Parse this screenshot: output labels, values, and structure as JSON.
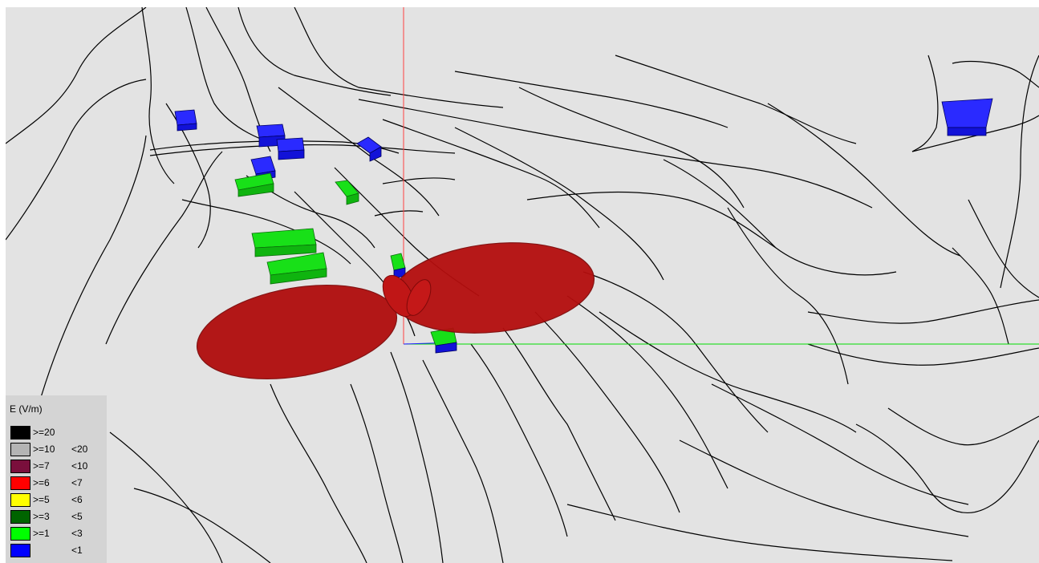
{
  "legend": {
    "title": "E (V/m)",
    "entries": [
      {
        "ge": ">=20",
        "lt": "",
        "color": "#000000"
      },
      {
        "ge": ">=10",
        "lt": "<20",
        "color": "#b4b4b4"
      },
      {
        "ge": ">=7",
        "lt": "<10",
        "color": "#7a0f3c"
      },
      {
        "ge": ">=6",
        "lt": "<7",
        "color": "#ff0000"
      },
      {
        "ge": ">=5",
        "lt": "<6",
        "color": "#ffff00"
      },
      {
        "ge": ">=3",
        "lt": "<5",
        "color": "#006400"
      },
      {
        "ge": ">=1",
        "lt": "<3",
        "color": "#00ff00"
      },
      {
        "ge": "",
        "lt": "<1",
        "color": "#0000ff"
      }
    ]
  },
  "colors": {
    "background": "#e3e3e3",
    "radiation_lobe": "#b00d0d",
    "axis_vertical": "#ff4040",
    "axis_horizontal": "#00dd00",
    "terrain_lines": "#000000"
  },
  "icons": [
    "antenna-radiation-lobe",
    "building-block",
    "terrain-contour",
    "axis-line"
  ]
}
